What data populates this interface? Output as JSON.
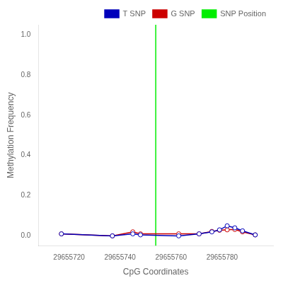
{
  "chart_data": {
    "type": "line",
    "xlabel": "CpG Coordinates",
    "ylabel": "Methylation Frequency",
    "xlim": [
      29655708,
      29655800
    ],
    "xticks": [
      29655720,
      29655740,
      29655760,
      29655780
    ],
    "ylim": [
      -0.05,
      1.05
    ],
    "yticks": [
      {
        "value": 0.0,
        "label": "0.0"
      },
      0.2,
      0.4,
      0.6,
      0.8,
      {
        "value": 1.0,
        "label": "1.0"
      }
    ],
    "grid": false,
    "legend": "upper right",
    "series": [
      {
        "name": "T SNP",
        "color": "#0000bb",
        "marker": "circle_open",
        "x": [
          29655717,
          29655737,
          29655745,
          29655748,
          29655763,
          29655771,
          29655776,
          29655779,
          29655782,
          29655785,
          29655788,
          29655793
        ],
        "values": [
          0.01,
          0.0,
          0.01,
          0.005,
          0.0,
          0.01,
          0.02,
          0.03,
          0.05,
          0.04,
          0.025,
          0.005
        ]
      },
      {
        "name": "G SNP",
        "color": "#cc0000",
        "marker": "circle_open",
        "x": [
          29655717,
          29655737,
          29655745,
          29655748,
          29655763,
          29655771,
          29655776,
          29655779,
          29655782,
          29655785,
          29655788,
          29655793
        ],
        "values": [
          0.01,
          0.0,
          0.02,
          0.01,
          0.01,
          0.01,
          0.022,
          0.028,
          0.03,
          0.032,
          0.02,
          0.005
        ]
      }
    ],
    "vlines": [
      {
        "name": "SNP Position",
        "color": "#00ee00",
        "x": 29655754
      }
    ]
  }
}
